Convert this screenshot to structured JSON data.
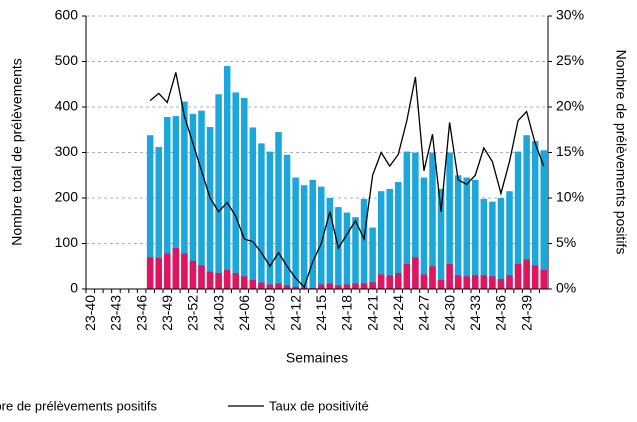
{
  "chart_data": {
    "type": "bar",
    "x_label": "Semaines",
    "y_label": "Nombre total de prélèvements",
    "y2_label": "Nombre de prélèvements positifs",
    "categories": [
      "23-40",
      null,
      null,
      "23-43",
      null,
      null,
      "23-46",
      null,
      null,
      "23-49",
      null,
      null,
      "23-52",
      null,
      null,
      "24-03",
      null,
      null,
      "24-06",
      null,
      null,
      "24-09",
      null,
      null,
      "24-12",
      null,
      null,
      "24-15",
      null,
      null,
      "24-18",
      null,
      null,
      "24-21",
      null,
      null,
      "24-24",
      null,
      null,
      "24-27",
      null,
      null,
      "24-30",
      null,
      null,
      "24-33",
      null,
      null,
      "24-36",
      null,
      null,
      "24-39",
      null,
      null
    ],
    "series": [
      {
        "color": "#1ba6dc",
        "values": [
          null,
          null,
          null,
          null,
          null,
          null,
          null,
          338,
          312,
          378,
          380,
          412,
          385,
          392,
          356,
          428,
          490,
          432,
          420,
          355,
          320,
          302,
          345,
          295,
          245,
          228,
          240,
          225,
          200,
          180,
          168,
          158,
          198,
          135,
          215,
          220,
          235,
          302,
          300,
          245,
          300,
          220,
          300,
          250,
          245,
          240,
          198,
          192,
          200,
          215,
          302,
          338,
          325,
          305
        ]
      },
      {
        "name": "Nombre de prélèvements positifs",
        "color": "#e0145f",
        "values": [
          null,
          null,
          null,
          null,
          null,
          null,
          null,
          70,
          68,
          78,
          90,
          78,
          62,
          52,
          38,
          35,
          42,
          35,
          28,
          20,
          14,
          10,
          12,
          8,
          5,
          3,
          2,
          10,
          12,
          8,
          10,
          12,
          12,
          15,
          32,
          30,
          35,
          55,
          70,
          32,
          50,
          20,
          55,
          30,
          28,
          30,
          30,
          28,
          22,
          30,
          55,
          65,
          52,
          42
        ]
      },
      {
        "name": "Taux de positivité",
        "type": "line",
        "axis": "y2",
        "color": "#000000",
        "values": [
          null,
          null,
          null,
          null,
          null,
          null,
          null,
          20.7,
          21.5,
          20.5,
          23.8,
          19,
          16,
          13,
          10,
          8.5,
          9.5,
          8,
          5.5,
          5.2,
          4,
          2.5,
          4,
          2.5,
          1.2,
          0.2,
          3,
          5,
          8.5,
          4.5,
          6,
          7.5,
          5.5,
          12.5,
          15,
          13.5,
          14.8,
          18.5,
          23.3,
          13,
          17,
          8.5,
          18.3,
          12,
          11.5,
          12.5,
          15.5,
          14,
          10.5,
          14,
          18.5,
          19.5,
          16,
          13.5
        ]
      }
    ],
    "ylim": [
      0,
      600
    ],
    "yticks": [
      0,
      100,
      200,
      300,
      400,
      500,
      600
    ],
    "y2lim": [
      0,
      30
    ],
    "y2ticks": [
      {
        "value": 0,
        "label": "0%"
      },
      {
        "value": 5,
        "label": "5%"
      },
      {
        "value": 10,
        "label": "10%"
      },
      {
        "value": 15,
        "label": "15%"
      },
      {
        "value": 20,
        "label": "20%"
      },
      {
        "value": 25,
        "label": "25%"
      },
      {
        "value": 30,
        "label": "30%"
      }
    ],
    "grid": true
  }
}
